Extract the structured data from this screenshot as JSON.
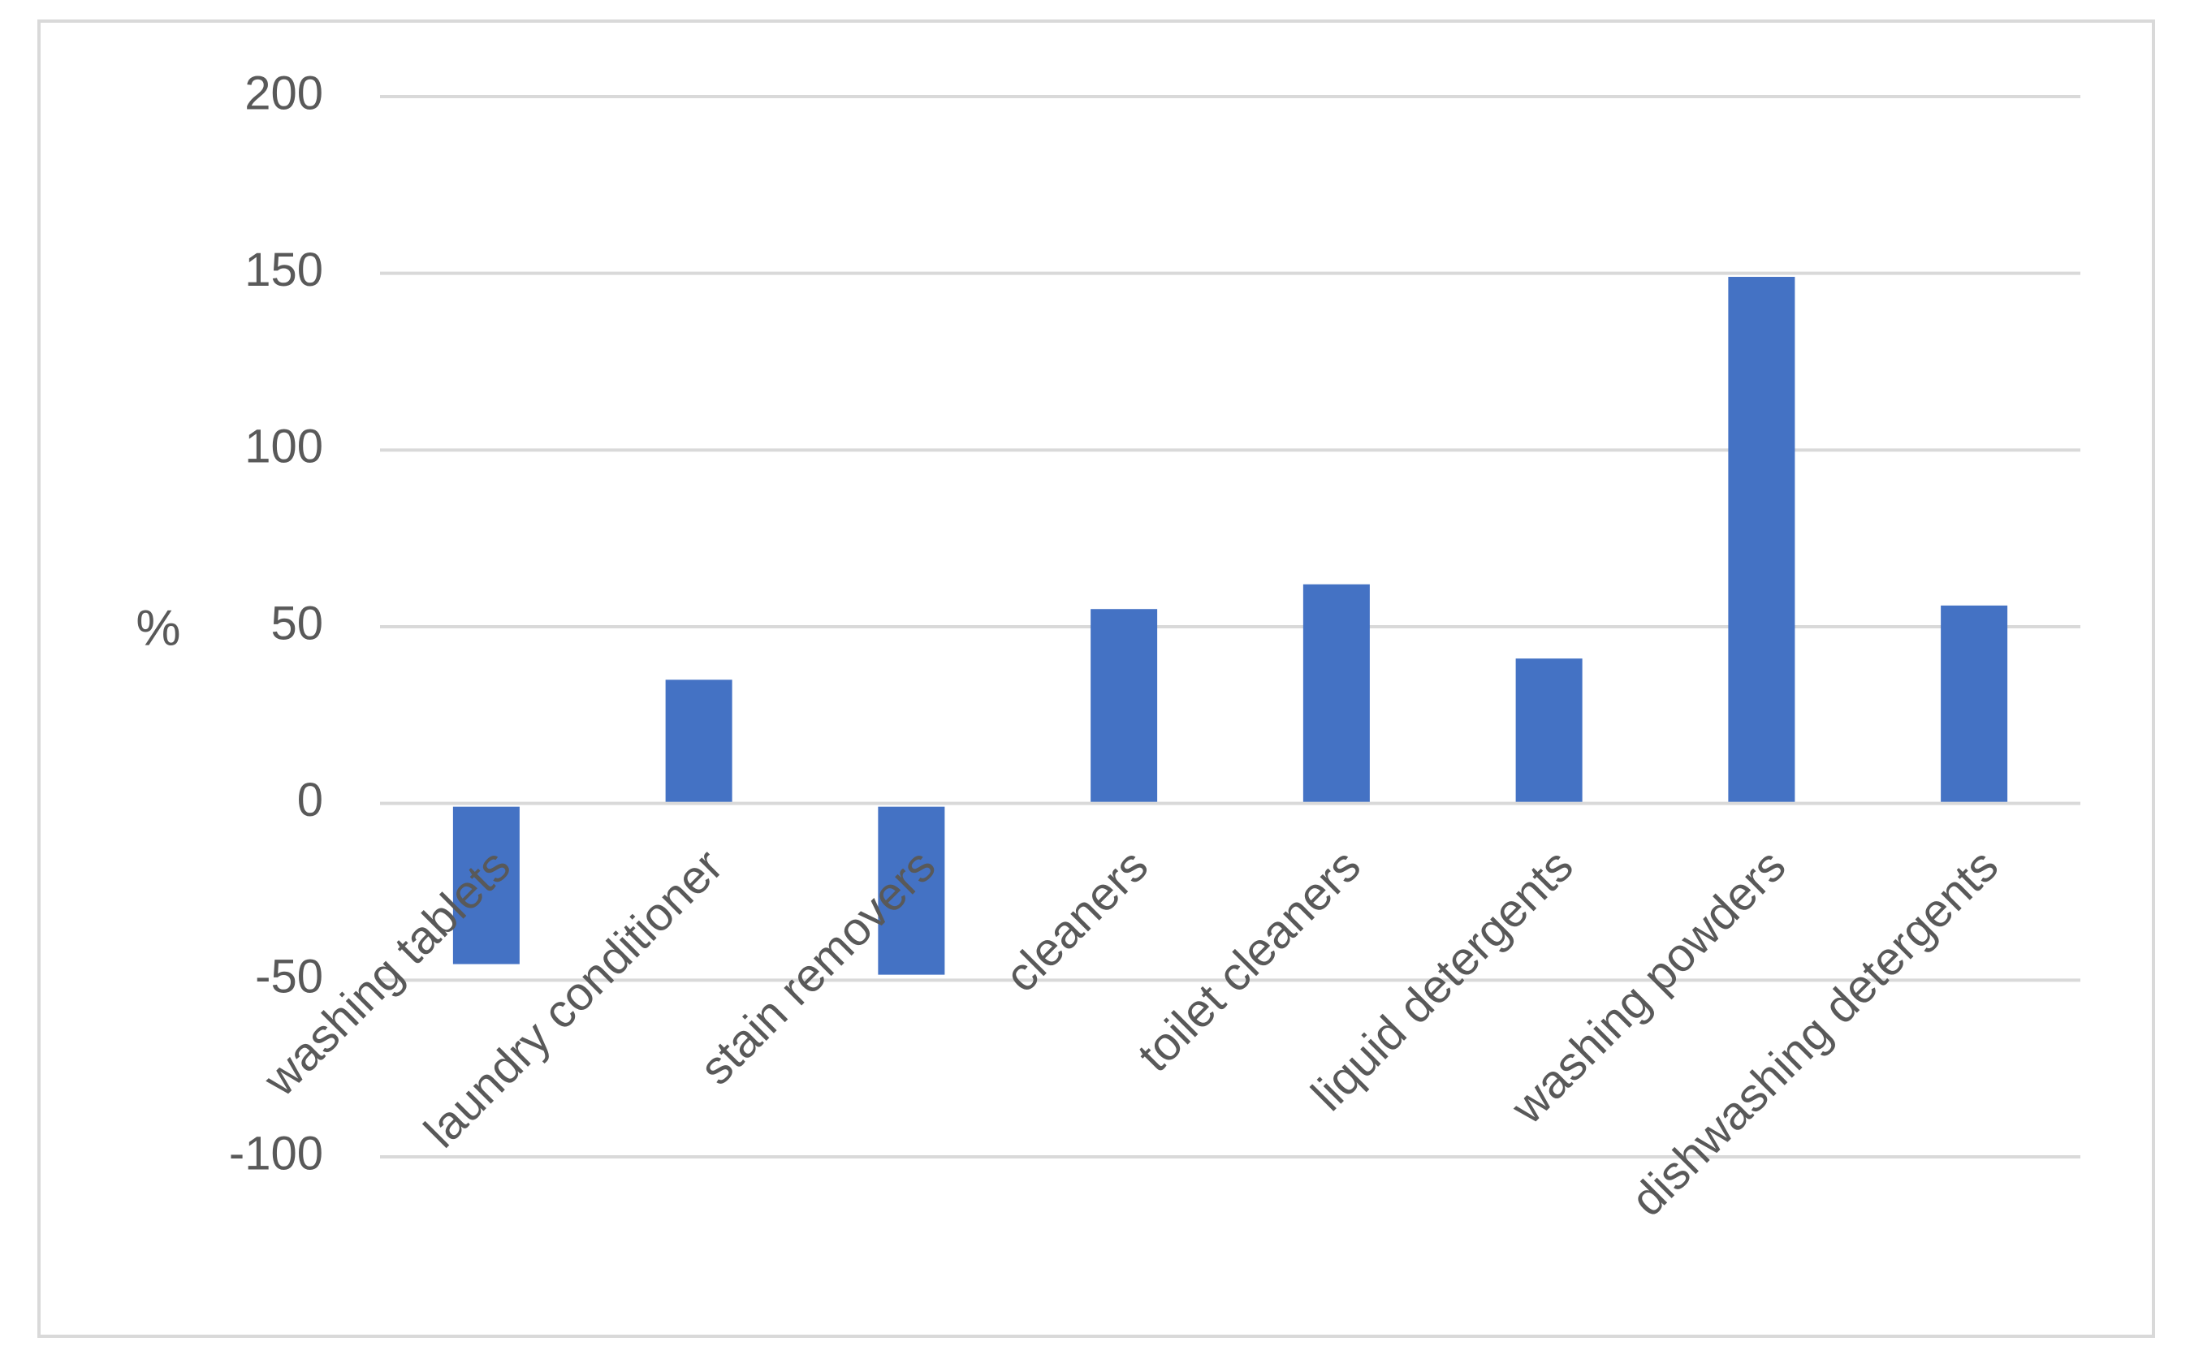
{
  "chart_data": {
    "type": "bar",
    "title": "",
    "xlabel": "",
    "ylabel": "%",
    "ylim": [
      -100,
      200
    ],
    "yticks": [
      200,
      150,
      100,
      50,
      0,
      -50,
      -100
    ],
    "categories": [
      "washing tablets",
      "laundry conditioner",
      "stain removers",
      "cleaners",
      "toilet cleaners",
      "liquid detergents",
      "washing powders",
      "dishwashing detergents"
    ],
    "values": [
      -45,
      35,
      -48,
      55,
      62,
      41,
      149,
      56
    ],
    "grid": true,
    "legend": "none",
    "colors": {
      "bar": "#4472C4",
      "grid": "#d9d9d9",
      "text": "#595959",
      "frame": "#d9d9d9"
    }
  }
}
